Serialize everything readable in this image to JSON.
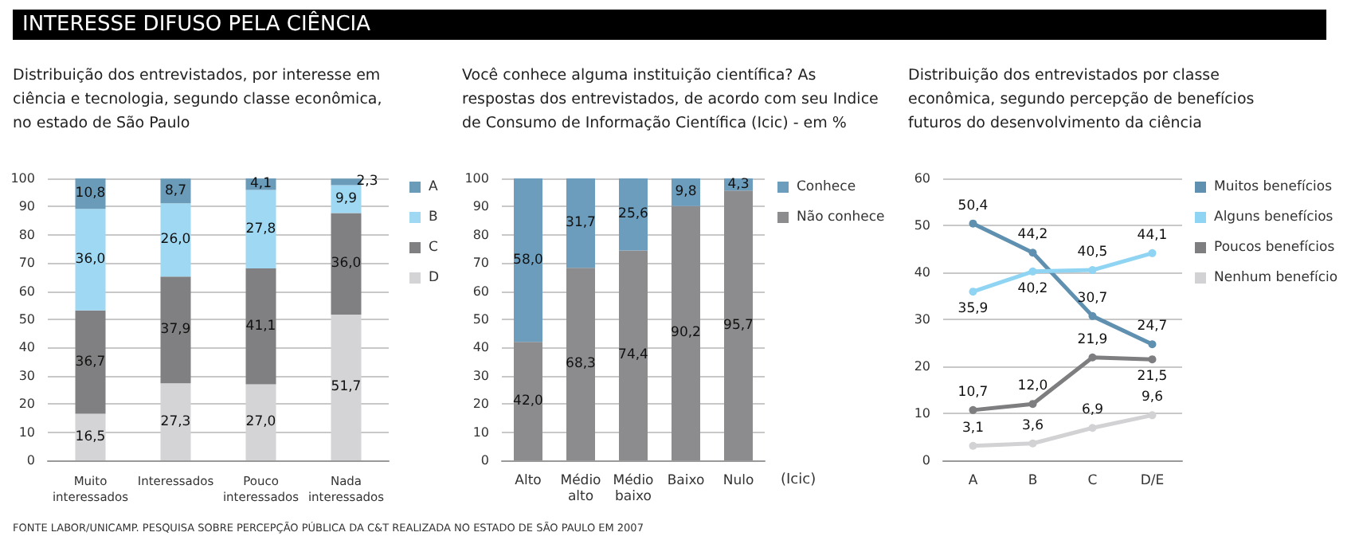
{
  "chart_data": [
    {
      "type": "bar",
      "title": "INTERESSE DIFUSO PELA CIÊNCIA",
      "subtitle": "Distribuição dos entrevistados, por interesse em\nciência e tecnologia, segundo classe econômica,\nno estado de São Paulo",
      "annotations": [
        "FONTE LABOR/UNICAMP. PESQUISA SOBRE PERCEPÇÃO PÚBLICA DA C&T REALIZADA NO ESTADO DE SÃO PAULO EM 2007"
      ],
      "categories": [
        "Muito interessados",
        "Interessados",
        "Pouco interessados",
        "Nada interessados"
      ],
      "stacked": true,
      "ylim": [
        0,
        100
      ],
      "yticks": [
        0,
        10,
        20,
        30,
        40,
        50,
        60,
        70,
        80,
        90,
        100
      ],
      "grid": "y",
      "legend": "right",
      "series": [
        {
          "name": "D",
          "color": "#d4d4d6",
          "values": [
            16.5,
            27.3,
            27.0,
            51.7
          ],
          "value_labels": [
            "16,5",
            "27,3",
            "27,0",
            "51,7"
          ]
        },
        {
          "name": "C",
          "color": "#808082",
          "values": [
            36.7,
            37.9,
            41.1,
            36.0
          ],
          "value_labels": [
            "36,7",
            "37,9",
            "41,1",
            "36,0"
          ]
        },
        {
          "name": "B",
          "color": "#9fd8f2",
          "values": [
            36.0,
            26.0,
            27.8,
            9.9
          ],
          "value_labels": [
            "36,0",
            "26,0",
            "27,8",
            "9,9"
          ]
        },
        {
          "name": "A",
          "color": "#6a9bb9",
          "values": [
            10.8,
            8.7,
            4.1,
            2.3
          ],
          "value_labels": [
            "10,8",
            "8,7",
            "4,1",
            "2,3"
          ]
        }
      ]
    },
    {
      "type": "bar",
      "title": "Você conhece alguma instituição científica? As\nrespostas dos entrevistados, de acordo com seu Indice\nde Consumo de Informação Científica (Icic) - em %",
      "xlabel": "(Icic)",
      "categories": [
        "Alto",
        "Médio alto",
        "Médio baixo",
        "Baixo",
        "Nulo"
      ],
      "stacked": true,
      "ylim": [
        0,
        100
      ],
      "yticks": [
        0,
        10,
        20,
        30,
        40,
        50,
        60,
        70,
        80,
        90,
        100
      ],
      "grid": "y",
      "legend": "right",
      "series": [
        {
          "name": "Não conhece",
          "color": "#8c8c8e",
          "values": [
            42.0,
            68.3,
            74.4,
            90.2,
            95.7
          ],
          "value_labels": [
            "42,0",
            "68,3",
            "74,4",
            "90,2",
            "95,7"
          ]
        },
        {
          "name": "Conhece",
          "color": "#6c9dbd",
          "values": [
            58.0,
            31.7,
            25.6,
            9.8,
            4.3
          ],
          "value_labels": [
            "58,0",
            "31,7",
            "25,6",
            "9,8",
            "4,3"
          ]
        }
      ]
    },
    {
      "type": "line",
      "title": "Distribuição dos entrevistados por classe\neconômica, segundo percepção de benefícios\nfuturos do desenvolvimento da ciência",
      "categories": [
        "A",
        "B",
        "C",
        "D/E"
      ],
      "ylim": [
        0,
        60
      ],
      "yticks": [
        0,
        10,
        20,
        30,
        40,
        50,
        60
      ],
      "grid": "y",
      "legend": "right",
      "marker": "circle",
      "series": [
        {
          "name": "Muitos benefícios",
          "color": "#5f90b0",
          "values": [
            50.4,
            44.2,
            30.7,
            24.7
          ],
          "value_labels": [
            "50,4",
            "44,2",
            "30,7",
            "24,7"
          ]
        },
        {
          "name": "Alguns benefícios",
          "color": "#8fd4f2",
          "values": [
            35.9,
            40.2,
            40.5,
            44.1
          ],
          "value_labels": [
            "35,9",
            "40,2",
            "40,5",
            "44,1"
          ]
        },
        {
          "name": "Poucos benefícios",
          "color": "#7e7e80",
          "values": [
            10.7,
            12.0,
            21.9,
            21.5
          ],
          "value_labels": [
            "10,7",
            "12,0",
            "21,9",
            "21,5"
          ]
        },
        {
          "name": "Nenhum benefício",
          "color": "#d2d2d4",
          "values": [
            3.1,
            3.6,
            6.9,
            9.6
          ],
          "value_labels": [
            "3,1",
            "3,6",
            "6,9",
            "9,6"
          ]
        }
      ]
    }
  ]
}
